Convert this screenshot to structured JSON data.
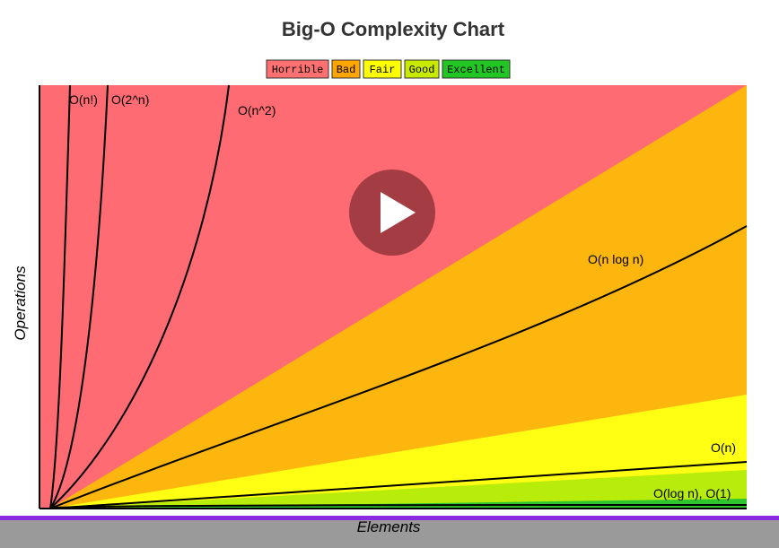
{
  "title": "Big-O Complexity Chart",
  "legend": [
    "Horrible",
    "Bad",
    "Fair",
    "Good",
    "Excellent"
  ],
  "axes": {
    "y_label": "Operations",
    "x_label": "Elements"
  },
  "curves": [
    "O(n!)",
    "O(2^n)",
    "O(n^2)",
    "O(n log n)",
    "O(n)",
    "O(log n), O(1)"
  ]
}
